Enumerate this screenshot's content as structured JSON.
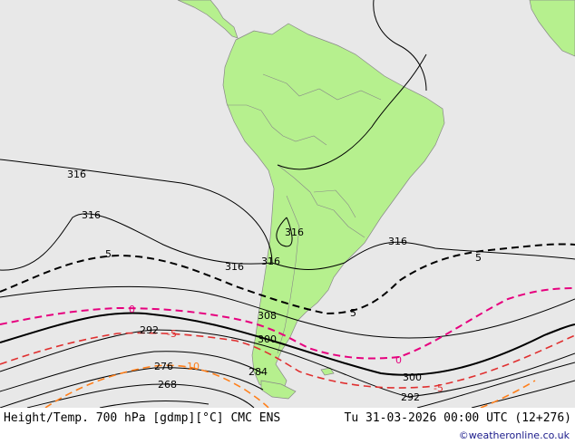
{
  "map": {
    "colors": {
      "ocean": "#e8e8e8",
      "land": "#b6f08e",
      "border": "#888888",
      "height_contour": "#000000",
      "temp_zero": "#e6007e",
      "temp_positive": "#e03030",
      "temp_negative": "#ff7f1a"
    },
    "height_labels": [
      "316",
      "316",
      "316",
      "316",
      "316",
      "316",
      "308",
      "300",
      "300",
      "292",
      "292",
      "284",
      "276",
      "268"
    ],
    "temp_labels": [
      "5",
      "5",
      "5",
      "0",
      "0",
      "-5",
      "-5",
      "-10"
    ]
  },
  "footer": {
    "title": "Height/Temp. 700 hPa [gdmp][°C] CMC ENS",
    "date": "Tu 31-03-2026 00:00 UTC (12+276)",
    "credit": "©weatheronline.co.uk"
  }
}
